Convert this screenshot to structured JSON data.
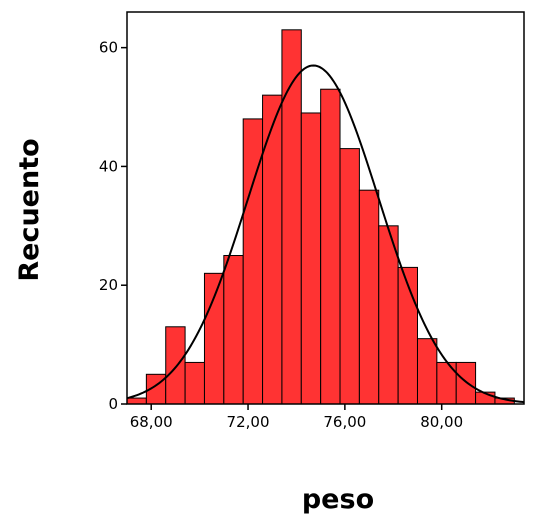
{
  "chart_data": {
    "type": "bar",
    "subtype": "histogram with normal curve",
    "xlabel": "peso",
    "ylabel": "Recuento",
    "bar_color": "#ff3333",
    "bar_edge_color": "#000000",
    "curve_color": "#000000",
    "grid": false,
    "xlim": [
      67.0,
      83.4
    ],
    "ylim": [
      0,
      66
    ],
    "bin_width": 0.8,
    "x_ticks": [
      68,
      72,
      76,
      80
    ],
    "x_tick_labels": [
      "68,00",
      "72,00",
      "76,00",
      "80,00"
    ],
    "y_ticks": [
      0,
      20,
      40,
      60
    ],
    "y_tick_labels": [
      "0",
      "20",
      "40",
      "60"
    ],
    "bins": [
      {
        "start": 67.0,
        "end": 67.8,
        "count": 1
      },
      {
        "start": 67.8,
        "end": 68.6,
        "count": 5
      },
      {
        "start": 68.6,
        "end": 69.4,
        "count": 13
      },
      {
        "start": 69.4,
        "end": 70.2,
        "count": 7
      },
      {
        "start": 70.2,
        "end": 71.0,
        "count": 22
      },
      {
        "start": 71.0,
        "end": 71.8,
        "count": 25
      },
      {
        "start": 71.8,
        "end": 72.6,
        "count": 48
      },
      {
        "start": 72.6,
        "end": 73.4,
        "count": 52
      },
      {
        "start": 73.4,
        "end": 74.2,
        "count": 63
      },
      {
        "start": 74.2,
        "end": 75.0,
        "count": 49
      },
      {
        "start": 75.0,
        "end": 75.8,
        "count": 53
      },
      {
        "start": 75.8,
        "end": 76.6,
        "count": 43
      },
      {
        "start": 76.6,
        "end": 77.4,
        "count": 36
      },
      {
        "start": 77.4,
        "end": 78.2,
        "count": 30
      },
      {
        "start": 78.2,
        "end": 79.0,
        "count": 23
      },
      {
        "start": 79.0,
        "end": 79.8,
        "count": 11
      },
      {
        "start": 79.8,
        "end": 80.6,
        "count": 7
      },
      {
        "start": 80.6,
        "end": 81.4,
        "count": 7
      },
      {
        "start": 81.4,
        "end": 82.2,
        "count": 2
      },
      {
        "start": 82.2,
        "end": 83.0,
        "count": 1
      }
    ],
    "normal_curve": {
      "mean": 74.7,
      "sd": 2.7,
      "peak": 57
    }
  }
}
